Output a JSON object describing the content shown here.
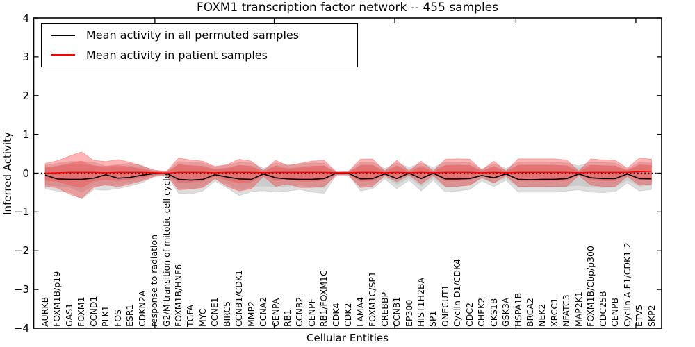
{
  "title": "FOXM1 transcription factor network -- 455 samples",
  "axes": {
    "xlabel": "Cellular Entities",
    "ylabel": "Inferred Activity"
  },
  "legend": {
    "items": [
      {
        "label": "Mean activity in all permuted samples",
        "color": "#000000"
      },
      {
        "label": "Mean activity in patient samples",
        "color": "#ff0000"
      }
    ]
  },
  "chart_data": {
    "type": "line",
    "title": "FOXM1 transcription factor network -- 455 samples",
    "xlabel": "Cellular Entities",
    "ylabel": "Inferred Activity",
    "ylim": [
      -4,
      4
    ],
    "yticks": [
      -4,
      -3,
      -2,
      -1,
      0,
      1,
      2,
      3,
      4
    ],
    "grid": false,
    "legend_position": "upper left",
    "zero_line": "dotted black at y=0",
    "frame_tick_fractions_x": [
      0.193,
      0.383,
      0.575,
      0.768,
      0.959
    ],
    "categories": [
      "AURKB",
      "FOXM1B/p19",
      "GAS1",
      "FOXM1",
      "CCND1",
      "PLK1",
      "FOS",
      "ESR1",
      "CDKN2A",
      "response to radiation",
      "G2/M transition of mitotic cell cycle",
      "FOXM1B/HNF6",
      "TGFA",
      "MYC",
      "CCNE1",
      "BIRC5",
      "CCNB1/CDK1",
      "MMP2",
      "CCNA2",
      "CENPA",
      "RB1",
      "CCNB2",
      "CENPF",
      "RB1/FOXM1C",
      "CDK4",
      "CDK2",
      "LAMA4",
      "FOXM1C/SP1",
      "CREBBP",
      "CCNB1",
      "EP300",
      "HIST1H2BA",
      "SP1",
      "ONECUT1",
      "Cyclin D1/CDK4",
      "CDC2",
      "CHEK2",
      "CKS1B",
      "GSK3A",
      "HSPA1B",
      "BRCA2",
      "NEK2",
      "XRCC1",
      "NFATC3",
      "MAP2K1",
      "FOXM1B/Cbp/p300",
      "CDC25B",
      "CENPB",
      "Cyclin A-E1/CDK1-2",
      "ETV5",
      "SKP2"
    ],
    "series": [
      {
        "name": "Mean activity in all permuted samples",
        "color": "#000000",
        "values": [
          -0.05,
          -0.15,
          -0.16,
          -0.16,
          -0.13,
          -0.04,
          -0.13,
          -0.11,
          -0.05,
          -0.01,
          0.0,
          -0.16,
          -0.18,
          -0.16,
          -0.04,
          -0.1,
          -0.15,
          -0.16,
          -0.02,
          -0.12,
          -0.15,
          -0.16,
          -0.16,
          -0.14,
          0.0,
          0.0,
          -0.15,
          -0.14,
          -0.02,
          -0.14,
          0.0,
          -0.14,
          0.0,
          -0.15,
          -0.15,
          -0.14,
          -0.06,
          -0.12,
          -0.02,
          -0.16,
          -0.17,
          -0.16,
          -0.16,
          -0.14,
          -0.02,
          -0.12,
          -0.14,
          -0.14,
          -0.02,
          -0.14,
          -0.15
        ]
      },
      {
        "name": "Mean activity in patient samples",
        "color": "#ff0000",
        "values": [
          0.0,
          0.01,
          0.02,
          0.02,
          0.02,
          0.01,
          0.02,
          0.02,
          0.02,
          0.01,
          0.0,
          0.02,
          0.02,
          0.02,
          0.01,
          0.02,
          0.02,
          0.02,
          0.01,
          0.02,
          0.02,
          0.02,
          0.02,
          0.02,
          0.01,
          0.01,
          0.02,
          0.02,
          0.01,
          0.02,
          0.01,
          0.02,
          0.01,
          0.02,
          0.02,
          0.02,
          0.01,
          0.02,
          0.01,
          0.02,
          0.02,
          0.02,
          0.02,
          0.02,
          0.01,
          0.02,
          0.02,
          0.02,
          0.02,
          0.04,
          0.05
        ]
      }
    ],
    "bands": [
      {
        "name": "permuted samples spread",
        "color": "#8a8a8a",
        "fill_opacity": 0.28,
        "inner_ratio": 0.75,
        "upper": [
          0.2,
          0.25,
          0.3,
          0.3,
          0.28,
          0.18,
          0.22,
          0.25,
          0.2,
          0.05,
          0.03,
          0.3,
          0.28,
          0.26,
          0.15,
          0.2,
          0.28,
          0.26,
          0.12,
          0.26,
          0.22,
          0.24,
          0.26,
          0.26,
          0.03,
          0.03,
          0.28,
          0.28,
          0.12,
          0.26,
          0.15,
          0.25,
          0.15,
          0.28,
          0.28,
          0.27,
          0.1,
          0.24,
          0.12,
          0.28,
          0.29,
          0.29,
          0.28,
          0.26,
          0.19,
          0.28,
          0.27,
          0.26,
          0.1,
          0.28,
          0.26
        ],
        "lower": [
          -0.4,
          -0.46,
          -0.49,
          -0.67,
          -0.42,
          -0.44,
          -0.4,
          -0.33,
          -0.25,
          -0.06,
          -0.04,
          -0.52,
          -0.54,
          -0.46,
          -0.2,
          -0.38,
          -0.58,
          -0.48,
          -0.45,
          -0.49,
          -0.46,
          -0.42,
          -0.49,
          -0.52,
          -0.04,
          -0.04,
          -0.46,
          -0.4,
          -0.15,
          -0.4,
          -0.18,
          -0.46,
          -0.18,
          -0.49,
          -0.46,
          -0.42,
          -0.2,
          -0.35,
          -0.18,
          -0.49,
          -0.49,
          -0.49,
          -0.49,
          -0.46,
          -0.43,
          -0.49,
          -0.5,
          -0.48,
          -0.25,
          -0.46,
          -0.42
        ]
      },
      {
        "name": "patient samples spread",
        "color": "#ff1a1a",
        "fill_opacity": 0.32,
        "inner_ratio": 0.58,
        "upper": [
          0.25,
          0.32,
          0.44,
          0.55,
          0.33,
          0.3,
          0.35,
          0.28,
          0.18,
          0.08,
          0.04,
          0.39,
          0.34,
          0.31,
          0.17,
          0.22,
          0.36,
          0.31,
          0.06,
          0.33,
          0.19,
          0.25,
          0.31,
          0.33,
          0.03,
          0.04,
          0.36,
          0.37,
          0.05,
          0.33,
          0.05,
          0.31,
          0.05,
          0.36,
          0.37,
          0.36,
          0.08,
          0.31,
          0.05,
          0.37,
          0.37,
          0.37,
          0.37,
          0.34,
          0.05,
          0.37,
          0.34,
          0.33,
          0.13,
          0.39,
          0.36
        ],
        "lower": [
          -0.33,
          -0.38,
          -0.54,
          -0.65,
          -0.36,
          -0.3,
          -0.35,
          -0.28,
          -0.2,
          -0.09,
          -0.05,
          -0.43,
          -0.41,
          -0.37,
          -0.14,
          -0.34,
          -0.46,
          -0.4,
          -0.08,
          -0.34,
          -0.28,
          -0.37,
          -0.37,
          -0.34,
          -0.05,
          -0.05,
          -0.37,
          -0.34,
          -0.06,
          -0.22,
          -0.05,
          -0.28,
          -0.05,
          -0.34,
          -0.34,
          -0.31,
          -0.11,
          -0.25,
          -0.06,
          -0.34,
          -0.35,
          -0.35,
          -0.34,
          -0.34,
          -0.06,
          -0.31,
          -0.34,
          -0.34,
          -0.08,
          -0.31,
          -0.28
        ]
      }
    ]
  }
}
